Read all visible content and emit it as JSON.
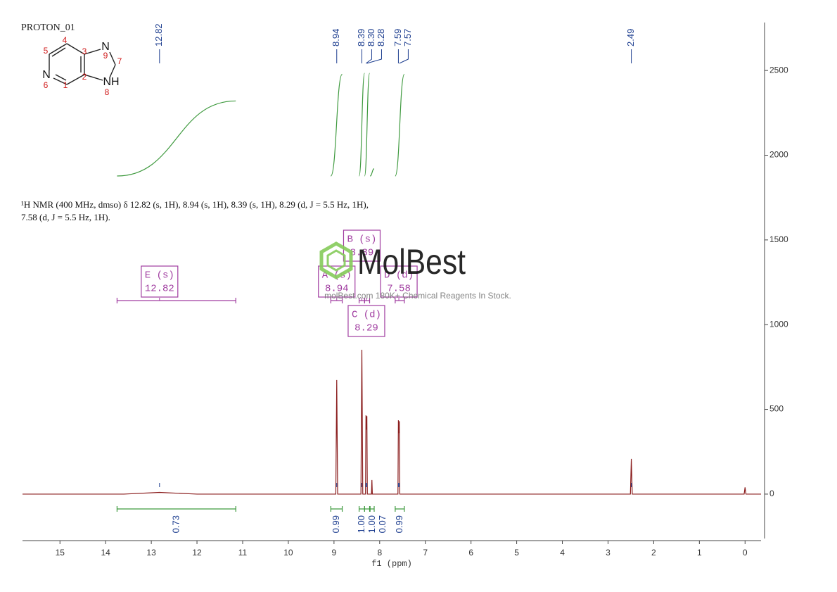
{
  "experiment": "PROTON_01",
  "structure": {
    "atoms": [
      "N",
      "N",
      "NH"
    ],
    "locants": [
      "1",
      "2",
      "3",
      "4",
      "5",
      "6",
      "7",
      "8",
      "9"
    ]
  },
  "description": [
    "¹H NMR (400 MHz, dmso) δ 12.82 (s, 1H), 8.94 (s, 1H), 8.39 (s, 1H), 8.29 (d, J = 5.5 Hz, 1H),",
    "7.58 (d, J = 5.5 Hz, 1H)."
  ],
  "watermark": {
    "brand": "MolBest",
    "tagline": "molBest.com 180K+ Chemical Reagents In Stock."
  },
  "chart_data": {
    "type": "nmr",
    "xlabel": "f1 (ppm)",
    "xlim": [
      15.82,
      -0.35
    ],
    "xticks": [
      15,
      14,
      13,
      12,
      11,
      10,
      9,
      8,
      7,
      6,
      5,
      4,
      3,
      2,
      1,
      0
    ],
    "ylim": [
      -262,
      2783
    ],
    "yticks": [
      0,
      500,
      1000,
      1500,
      2000,
      2500
    ],
    "color": "#8b1e1e",
    "x": [
      15.82,
      13.6,
      12.82,
      12.0,
      8.96,
      8.94,
      8.92,
      8.41,
      8.39,
      8.37,
      8.31,
      8.3,
      8.29,
      8.28,
      8.27,
      8.18,
      8.17,
      8.16,
      7.6,
      7.59,
      7.58,
      7.57,
      7.56,
      2.51,
      2.49,
      2.47,
      0.02,
      0,
      -0.02,
      -0.35
    ],
    "values": [
      0,
      0,
      10,
      0,
      0,
      673,
      0,
      0,
      852,
      0,
      0,
      465,
      380,
      460,
      0,
      0,
      83,
      0,
      0,
      436,
      360,
      430,
      0,
      0,
      208,
      0,
      0,
      40,
      0,
      0
    ],
    "peaks": {
      "values": [
        12.82,
        8.94,
        8.39,
        8.3,
        8.28,
        7.59,
        7.57,
        2.49
      ],
      "value_labels": [
        "12.82",
        "8.94",
        "8.39",
        "8.30",
        "8.28",
        "7.59",
        "7.57",
        "2.49"
      ]
    },
    "integrals": {
      "ranges": [
        [
          13.75,
          11.15
        ],
        [
          9.07,
          8.82
        ],
        [
          8.45,
          8.33
        ],
        [
          8.33,
          8.22
        ],
        [
          8.21,
          8.12
        ],
        [
          7.66,
          7.46
        ]
      ],
      "values": [
        0.73,
        0.99,
        1,
        1,
        0.07,
        0.99
      ],
      "value_labels": [
        "0.73",
        "0.99",
        "1.00",
        "1.00",
        "0.07",
        "0.99"
      ]
    },
    "multiplets": [
      {
        "name": "E (s)",
        "shift": 12.82,
        "range": [
          13.75,
          11.15
        ]
      },
      {
        "name": "A (s)",
        "shift": 8.94,
        "range": [
          9.07,
          8.82
        ]
      },
      {
        "name": "B (s)",
        "shift": 8.39,
        "range": [
          8.45,
          8.33
        ]
      },
      {
        "name": "C (d)",
        "shift": 8.29,
        "range": [
          8.33,
          8.22
        ]
      },
      {
        "name": "D (d)",
        "shift": 7.58,
        "range": [
          7.66,
          7.46
        ]
      }
    ]
  }
}
